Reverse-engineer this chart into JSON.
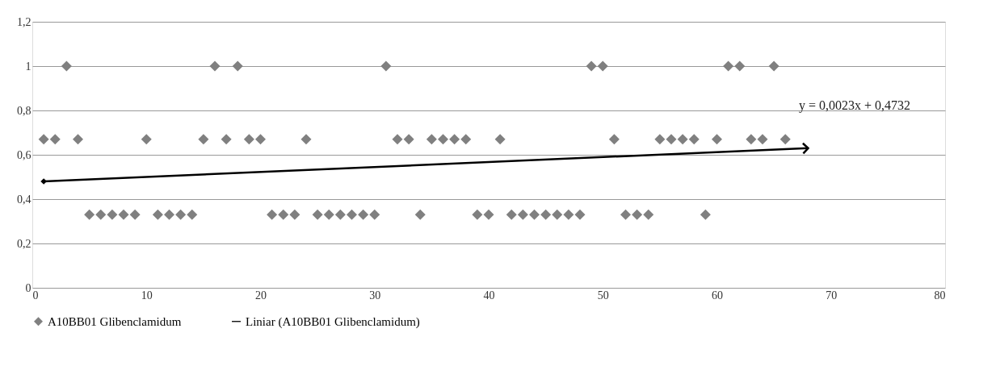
{
  "chart_data": {
    "type": "scatter",
    "xlim": [
      0,
      80
    ],
    "xticks": [
      0,
      10,
      20,
      30,
      40,
      50,
      60,
      70,
      80
    ],
    "ylim": [
      0,
      1.2
    ],
    "yticks": [
      0,
      {
        "value": 0.2,
        "label": "0,2"
      },
      {
        "value": 0.4,
        "label": "0,4"
      },
      {
        "value": 0.6,
        "label": "0,6"
      },
      {
        "value": 0.8,
        "label": "0,8"
      },
      1,
      {
        "value": 1.2,
        "label": "1,2"
      }
    ],
    "grid": "y",
    "legend": "bottom",
    "annotations": [
      "y = 0,0023x + 0,4732"
    ],
    "series": [
      {
        "name": "A10BB01 Glibenclamidum",
        "color": "#808080",
        "marker": "diamond",
        "x": [
          1,
          2,
          3,
          4,
          5,
          6,
          7,
          8,
          9,
          10,
          11,
          12,
          13,
          14,
          15,
          16,
          17,
          18,
          19,
          20,
          21,
          22,
          23,
          24,
          25,
          26,
          27,
          28,
          29,
          30,
          31,
          32,
          33,
          34,
          35,
          36,
          37,
          38,
          39,
          40,
          41,
          42,
          43,
          44,
          45,
          46,
          47,
          48,
          49,
          50,
          51,
          52,
          53,
          54,
          55,
          56,
          57,
          58,
          59,
          60,
          61,
          62,
          63,
          64,
          65,
          66
        ],
        "values": [
          0.67,
          0.67,
          1,
          0.67,
          0.33,
          0.33,
          0.33,
          0.33,
          0.33,
          0.67,
          0.33,
          0.33,
          0.33,
          0.33,
          0.67,
          1,
          0.67,
          1,
          0.67,
          0.67,
          0.33,
          0.33,
          0.33,
          0.67,
          0.33,
          0.33,
          0.33,
          0.33,
          0.33,
          0.33,
          1,
          0.67,
          0.67,
          0.33,
          0.67,
          0.67,
          0.67,
          0.67,
          0.33,
          0.33,
          0.67,
          0.33,
          0.33,
          0.33,
          0.33,
          0.33,
          0.33,
          0.33,
          1,
          1,
          0.67,
          0.33,
          0.33,
          0.33,
          0.67,
          0.67,
          0.67,
          0.67,
          0.33,
          0.67,
          1,
          1,
          0.67,
          0.67,
          1,
          0.67
        ]
      },
      {
        "name": "Liniar (A10BB01 Glibenclamidum)",
        "type": "line",
        "color": "#000000",
        "marker": "diamond",
        "x": [
          1,
          68
        ],
        "values": [
          0.48,
          0.63
        ]
      }
    ]
  }
}
